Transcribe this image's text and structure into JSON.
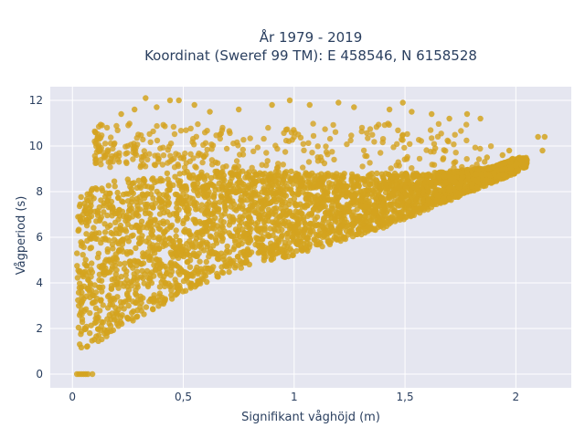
{
  "chart_data": {
    "type": "scatter",
    "title_line1": "År 1979 - 2019",
    "title_line2": "Koordinat (Sweref 99 TM): E 458546, N 6158528",
    "xlabel": "Signifikant våghöjd (m)",
    "ylabel": "Vågperiod (s)",
    "xlim": [
      -0.1,
      2.25
    ],
    "ylim": [
      -0.6,
      12.6
    ],
    "x_ticks": [
      0,
      0.5,
      1,
      1.5,
      2
    ],
    "x_tick_labels": [
      "0",
      "0,5",
      "1",
      "1,5",
      "2"
    ],
    "y_ticks": [
      0,
      2,
      4,
      6,
      8,
      10,
      12
    ],
    "y_tick_labels": [
      "0",
      "2",
      "4",
      "6",
      "8",
      "10",
      "12"
    ],
    "grid": true,
    "point_color": "#d4a31f",
    "plot_bgcolor": "#e5e6f0",
    "density_band": [
      {
        "x": 0.02,
        "y_low": 1.2,
        "y_high": 7.6
      },
      {
        "x": 0.05,
        "y_low": 1.1,
        "y_high": 7.9
      },
      {
        "x": 0.1,
        "y_low": 1.3,
        "y_high": 8.2
      },
      {
        "x": 0.2,
        "y_low": 1.9,
        "y_high": 8.5
      },
      {
        "x": 0.3,
        "y_low": 2.5,
        "y_high": 8.7
      },
      {
        "x": 0.4,
        "y_low": 3.0,
        "y_high": 8.8
      },
      {
        "x": 0.5,
        "y_low": 3.6,
        "y_high": 8.9
      },
      {
        "x": 0.6,
        "y_low": 4.0,
        "y_high": 8.9
      },
      {
        "x": 0.7,
        "y_low": 4.4,
        "y_high": 8.9
      },
      {
        "x": 0.8,
        "y_low": 4.8,
        "y_high": 8.9
      },
      {
        "x": 0.9,
        "y_low": 5.0,
        "y_high": 8.9
      },
      {
        "x": 1.0,
        "y_low": 5.2,
        "y_high": 8.9
      },
      {
        "x": 1.1,
        "y_low": 5.5,
        "y_high": 8.8
      },
      {
        "x": 1.2,
        "y_low": 5.8,
        "y_high": 8.8
      },
      {
        "x": 1.3,
        "y_low": 6.1,
        "y_high": 8.8
      },
      {
        "x": 1.4,
        "y_low": 6.4,
        "y_high": 8.8
      },
      {
        "x": 1.5,
        "y_low": 6.8,
        "y_high": 8.8
      },
      {
        "x": 1.6,
        "y_low": 7.2,
        "y_high": 8.8
      },
      {
        "x": 1.7,
        "y_low": 7.6,
        "y_high": 8.9
      },
      {
        "x": 1.8,
        "y_low": 8.0,
        "y_high": 9.0
      },
      {
        "x": 1.9,
        "y_low": 8.4,
        "y_high": 9.1
      },
      {
        "x": 2.0,
        "y_low": 8.8,
        "y_high": 9.5
      },
      {
        "x": 2.05,
        "y_low": 9.1,
        "y_high": 9.5
      }
    ],
    "upper_cluster": {
      "x_min": 0.1,
      "x_max": 1.9,
      "y_min": 9.0,
      "y_max": 11.0
    },
    "outlier_points": [
      {
        "x": 0.02,
        "y": 0.0
      },
      {
        "x": 0.03,
        "y": 0.0
      },
      {
        "x": 0.04,
        "y": 0.0
      },
      {
        "x": 0.05,
        "y": 0.0
      },
      {
        "x": 0.06,
        "y": 0.0
      },
      {
        "x": 0.07,
        "y": 0.0
      },
      {
        "x": 0.09,
        "y": 0.0
      },
      {
        "x": 0.33,
        "y": 12.1
      },
      {
        "x": 0.44,
        "y": 12.0
      },
      {
        "x": 0.48,
        "y": 12.0
      },
      {
        "x": 0.55,
        "y": 11.8
      },
      {
        "x": 0.62,
        "y": 11.5
      },
      {
        "x": 0.75,
        "y": 11.6
      },
      {
        "x": 0.9,
        "y": 11.8
      },
      {
        "x": 0.98,
        "y": 12.0
      },
      {
        "x": 1.07,
        "y": 11.8
      },
      {
        "x": 1.2,
        "y": 11.9
      },
      {
        "x": 1.27,
        "y": 11.7
      },
      {
        "x": 1.43,
        "y": 11.6
      },
      {
        "x": 1.49,
        "y": 11.9
      },
      {
        "x": 1.53,
        "y": 11.5
      },
      {
        "x": 1.62,
        "y": 11.4
      },
      {
        "x": 1.7,
        "y": 11.2
      },
      {
        "x": 1.78,
        "y": 11.4
      },
      {
        "x": 1.84,
        "y": 11.2
      },
      {
        "x": 0.22,
        "y": 11.4
      },
      {
        "x": 0.28,
        "y": 11.6
      },
      {
        "x": 0.38,
        "y": 11.7
      },
      {
        "x": 1.94,
        "y": 9.6
      },
      {
        "x": 2.1,
        "y": 10.4
      },
      {
        "x": 2.13,
        "y": 10.4
      },
      {
        "x": 2.12,
        "y": 9.8
      },
      {
        "x": 1.97,
        "y": 9.8
      },
      {
        "x": 1.87,
        "y": 9.5
      }
    ]
  }
}
